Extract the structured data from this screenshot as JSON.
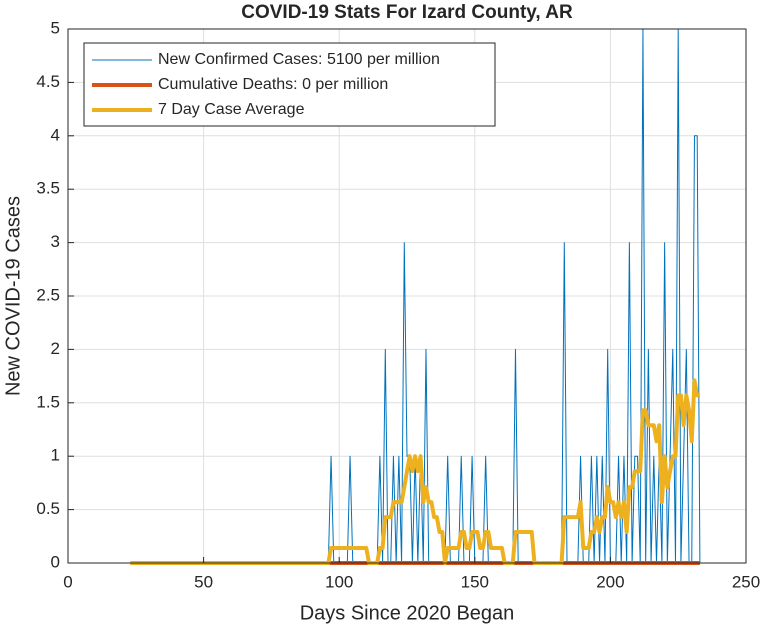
{
  "chart_data": {
    "type": "line",
    "title": "COVID-19 Stats For Izard County, AR",
    "xlabel": "Days Since 2020 Began",
    "ylabel": "New COVID-19 Cases",
    "xlim": [
      0,
      250
    ],
    "xticks": [
      0,
      50,
      100,
      150,
      200,
      250
    ],
    "ylim": [
      0,
      5
    ],
    "yticks": [
      0,
      0.5,
      1,
      1.5,
      2,
      2.5,
      3,
      3.5,
      4,
      4.5,
      5
    ],
    "grid": true,
    "legend": "northwest",
    "series": [
      {
        "name": "New Confirmed Cases: 5100 per million",
        "color": "#0072bd",
        "width": 1,
        "x": [
          23,
          96,
          97,
          98,
          99,
          100,
          101,
          102,
          103,
          104,
          105,
          106,
          107,
          108,
          109,
          110,
          111,
          112,
          113,
          114,
          115,
          116,
          117,
          118,
          119,
          120,
          121,
          122,
          123,
          124,
          125,
          126,
          127,
          128,
          129,
          130,
          131,
          132,
          133,
          134,
          135,
          136,
          137,
          138,
          139,
          140,
          141,
          142,
          143,
          144,
          145,
          146,
          147,
          148,
          149,
          150,
          151,
          152,
          153,
          154,
          155,
          156,
          157,
          158,
          159,
          160,
          161,
          162,
          163,
          164,
          165,
          166,
          167,
          168,
          169,
          170,
          171,
          172,
          173,
          174,
          175,
          176,
          177,
          178,
          179,
          180,
          181,
          182,
          183,
          184,
          185,
          186,
          187,
          188,
          189,
          190,
          191,
          192,
          193,
          194,
          195,
          196,
          197,
          198,
          199,
          200,
          201,
          202,
          203,
          204,
          205,
          206,
          207,
          208,
          209,
          210,
          211,
          212,
          213,
          214,
          215,
          216,
          217,
          218,
          219,
          220,
          221,
          222,
          223,
          224,
          225,
          226,
          227,
          228,
          229,
          230,
          231,
          232,
          233
        ],
        "values": [
          0,
          0,
          1,
          0,
          0,
          0,
          0,
          0,
          0,
          1,
          0,
          0,
          0,
          0,
          0,
          0,
          0,
          0,
          0,
          0,
          1,
          0,
          2,
          0,
          0,
          1,
          0,
          1,
          0,
          3,
          1,
          1,
          0,
          1,
          0,
          1,
          0,
          2,
          0,
          0,
          0,
          0,
          0,
          0,
          0,
          1,
          0,
          0,
          0,
          0,
          1,
          0,
          0,
          0,
          1,
          0,
          0,
          0,
          0,
          1,
          0,
          0,
          0,
          0,
          0,
          0,
          0,
          0,
          0,
          0,
          2,
          0,
          0,
          0,
          0,
          0,
          0,
          0,
          0,
          0,
          0,
          0,
          0,
          0,
          0,
          0,
          0,
          0,
          3,
          0,
          0,
          0,
          0,
          0,
          1,
          0,
          0,
          0,
          1,
          0,
          1,
          0,
          1,
          0,
          2,
          0,
          0,
          0,
          1,
          0,
          1,
          0,
          3,
          0,
          1,
          1,
          0,
          5,
          0,
          2,
          0,
          1,
          0,
          1,
          0,
          3,
          0,
          1,
          2,
          0,
          5,
          0,
          1,
          2,
          0,
          0,
          4,
          4,
          0
        ]
      },
      {
        "name": "Cumulative Deaths: 0 per million",
        "color": "#d95319",
        "width": 4,
        "x": [
          23,
          233
        ],
        "values": [
          0,
          0
        ]
      },
      {
        "name": "7 Day Case Average",
        "color": "#edb120",
        "width": 4,
        "x": [
          23,
          96,
          97,
          98,
          99,
          100,
          101,
          102,
          103,
          104,
          105,
          106,
          107,
          108,
          109,
          110,
          111,
          112,
          113,
          114,
          115,
          116,
          117,
          118,
          119,
          120,
          121,
          122,
          123,
          124,
          125,
          126,
          127,
          128,
          129,
          130,
          131,
          132,
          133,
          134,
          135,
          136,
          137,
          138,
          139,
          140,
          141,
          142,
          143,
          144,
          145,
          146,
          147,
          148,
          149,
          150,
          151,
          152,
          153,
          154,
          155,
          156,
          157,
          158,
          159,
          160,
          161,
          162,
          163,
          164,
          165,
          166,
          167,
          168,
          169,
          170,
          171,
          172,
          173,
          174,
          175,
          176,
          177,
          178,
          179,
          180,
          181,
          182,
          183,
          184,
          185,
          186,
          187,
          188,
          189,
          190,
          191,
          192,
          193,
          194,
          195,
          196,
          197,
          198,
          199,
          200,
          201,
          202,
          203,
          204,
          205,
          206,
          207,
          208,
          209,
          210,
          211,
          212,
          213,
          214,
          215,
          216,
          217,
          218,
          219,
          220,
          221,
          222,
          223,
          224,
          225,
          226,
          227,
          228,
          229,
          230,
          231,
          232,
          233
        ],
        "values": [
          0,
          0,
          0.14,
          0.14,
          0.14,
          0.14,
          0.14,
          0.14,
          0.14,
          0.14,
          0.14,
          0.14,
          0.14,
          0.14,
          0.14,
          0.14,
          0,
          0,
          0,
          0,
          0.14,
          0.14,
          0.43,
          0.43,
          0.43,
          0.57,
          0.57,
          0.57,
          0.57,
          0.71,
          0.86,
          1,
          0.86,
          1,
          0.86,
          1,
          0.57,
          0.71,
          0.57,
          0.57,
          0.43,
          0.43,
          0.29,
          0.29,
          0,
          0.14,
          0.14,
          0.14,
          0.14,
          0.14,
          0.29,
          0.29,
          0.14,
          0.14,
          0.29,
          0.29,
          0.29,
          0.14,
          0.14,
          0.29,
          0.29,
          0.14,
          0.14,
          0.14,
          0.14,
          0.14,
          0,
          0,
          0,
          0,
          0.29,
          0.29,
          0.29,
          0.29,
          0.29,
          0.29,
          0.29,
          0,
          0,
          0,
          0,
          0,
          0,
          0,
          0,
          0,
          0,
          0,
          0.43,
          0.43,
          0.43,
          0.43,
          0.43,
          0.43,
          0.57,
          0.14,
          0.14,
          0.14,
          0.29,
          0.29,
          0.43,
          0.29,
          0.43,
          0.43,
          0.71,
          0.57,
          0.57,
          0.43,
          0.57,
          0.43,
          0.57,
          0.29,
          0.71,
          0.71,
          0.86,
          0.86,
          0.86,
          1.43,
          1.43,
          1.29,
          1.29,
          1.29,
          1.14,
          1.29,
          0.57,
          1,
          0.71,
          0.86,
          1,
          1,
          1.57,
          1.57,
          1.29,
          1.57,
          1.43,
          1.14,
          1.71,
          1.57,
          1.57
        ]
      }
    ]
  }
}
